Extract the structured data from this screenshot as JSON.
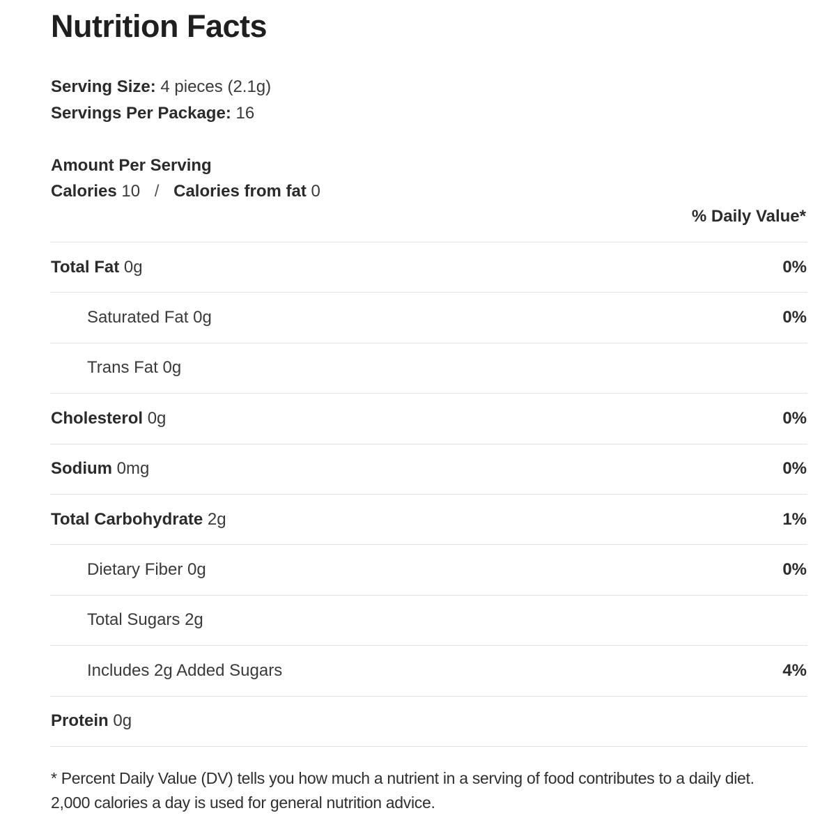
{
  "title": "Nutrition Facts",
  "serving": {
    "size_label": "Serving Size:",
    "size_value": "4 pieces (2.1g)",
    "per_package_label": "Servings Per Package:",
    "per_package_value": "16"
  },
  "amount_per_serving": "Amount Per Serving",
  "calories": {
    "label": "Calories",
    "value": "10",
    "separator": "/",
    "from_fat_label": "Calories from fat",
    "from_fat_value": "0"
  },
  "daily_value_header": "% Daily Value*",
  "nutrients": [
    {
      "name": "Total Fat",
      "amount": "0g",
      "dv": "0%"
    },
    {
      "name": "Saturated Fat",
      "amount": "0g",
      "dv": "0%"
    },
    {
      "name": "Trans Fat",
      "amount": "0g",
      "dv": ""
    },
    {
      "name": "Cholesterol",
      "amount": "0g",
      "dv": "0%"
    },
    {
      "name": "Sodium",
      "amount": "0mg",
      "dv": "0%"
    },
    {
      "name": "Total Carbohydrate",
      "amount": "2g",
      "dv": "1%"
    },
    {
      "name": "Dietary Fiber",
      "amount": "0g",
      "dv": "0%"
    },
    {
      "name": "Total Sugars",
      "amount": "2g",
      "dv": ""
    },
    {
      "name": "Includes 2g Added Sugars",
      "amount": "",
      "dv": "4%"
    },
    {
      "name": "Protein",
      "amount": "0g",
      "dv": ""
    }
  ],
  "footnote": {
    "line1": "* Percent Daily Value (DV) tells you how much a nutrient in a serving of food contributes to a daily diet.",
    "line2": "2,000 calories a day is used for general nutrition advice."
  }
}
